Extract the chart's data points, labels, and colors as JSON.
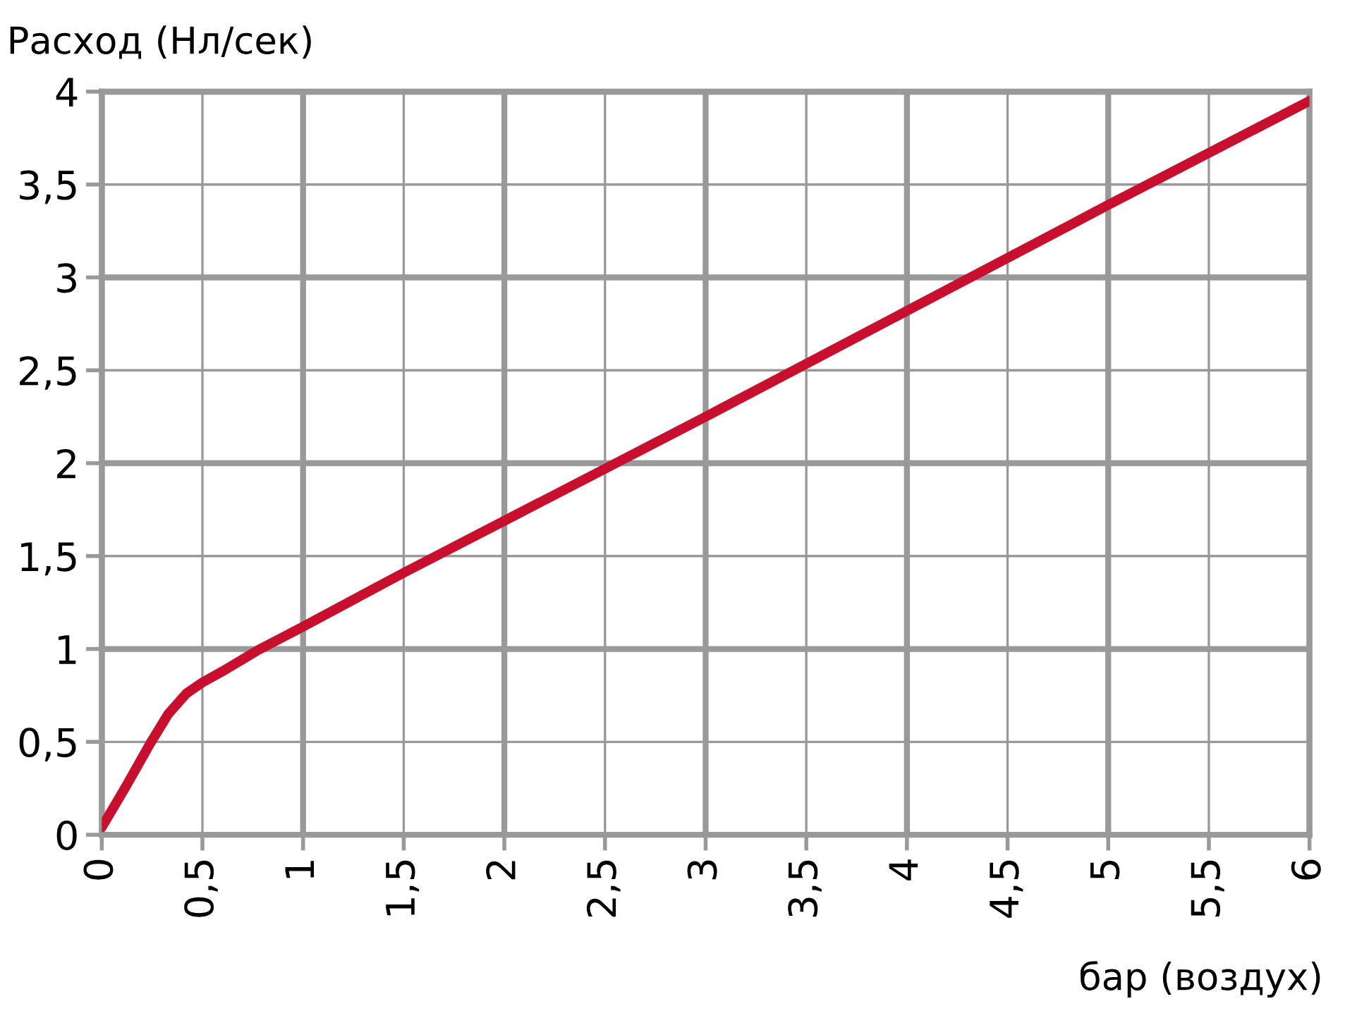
{
  "chart_data": {
    "type": "line",
    "xlabel": "бар (воздух)",
    "ylabel": "Расход (Нл/сек)",
    "x": [
      0,
      0.12,
      0.24,
      0.33,
      0.42,
      0.5,
      0.6,
      0.77,
      1,
      1.5,
      2,
      3,
      4,
      5,
      6
    ],
    "series": [
      {
        "color": "#c8102e",
        "values": [
          0.04,
          0.26,
          0.49,
          0.65,
          0.76,
          0.82,
          0.88,
          0.99,
          1.12,
          1.41,
          1.69,
          2.25,
          2.82,
          3.39,
          3.95
        ]
      }
    ],
    "xlim": [
      0,
      6
    ],
    "ylim": [
      0,
      4
    ],
    "xticks": [
      0,
      {
        "value": 0.5,
        "label": "0,5"
      },
      1,
      {
        "value": 1.5,
        "label": "1,5"
      },
      2,
      {
        "value": 2.5,
        "label": "2,5"
      },
      3,
      {
        "value": 3.5,
        "label": "3,5"
      },
      4,
      {
        "value": 4.5,
        "label": "4,5"
      },
      5,
      {
        "value": 5.5,
        "label": "5,5"
      },
      6
    ],
    "yticks": [
      0,
      {
        "value": 0.5,
        "label": "0,5"
      },
      1,
      {
        "value": 1.5,
        "label": "1,5"
      },
      2,
      {
        "value": 2.5,
        "label": "2,5"
      },
      3,
      {
        "value": 3.5,
        "label": "3,5"
      },
      4
    ],
    "grid": true,
    "marker": "none",
    "line_style": "solid",
    "legend": false
  }
}
